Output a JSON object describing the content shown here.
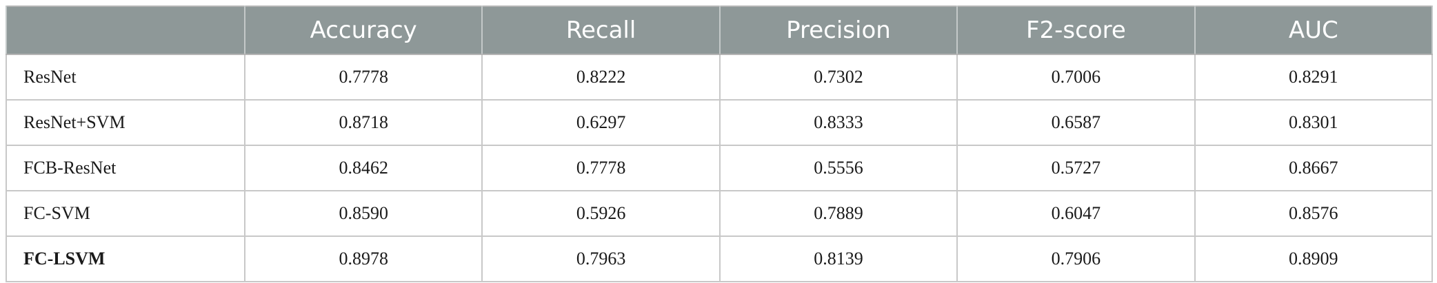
{
  "table": {
    "columns": [
      "",
      "Accuracy",
      "Recall",
      "Precision",
      "F2-score",
      "AUC"
    ],
    "rows": [
      {
        "label": "ResNet",
        "values": [
          "0.7778",
          "0.8222",
          "0.7302",
          "0.7006",
          "0.8291"
        ]
      },
      {
        "label": "ResNet+SVM",
        "values": [
          "0.8718",
          "0.6297",
          "0.8333",
          "0.6587",
          "0.8301"
        ]
      },
      {
        "label": "FCB-ResNet",
        "values": [
          "0.8462",
          "0.7778",
          "0.5556",
          "0.5727",
          "0.8667"
        ]
      },
      {
        "label": "FC-SVM",
        "values": [
          "0.8590",
          "0.5926",
          "0.7889",
          "0.6047",
          "0.8576"
        ]
      },
      {
        "label": "FC-LSVM",
        "values": [
          "0.8978",
          "0.7963",
          "0.8139",
          "0.7906",
          "0.8909"
        ]
      }
    ]
  },
  "colors": {
    "header_bg": "#8e9898",
    "header_text": "#ffffff",
    "border": "#c8c8c8"
  }
}
